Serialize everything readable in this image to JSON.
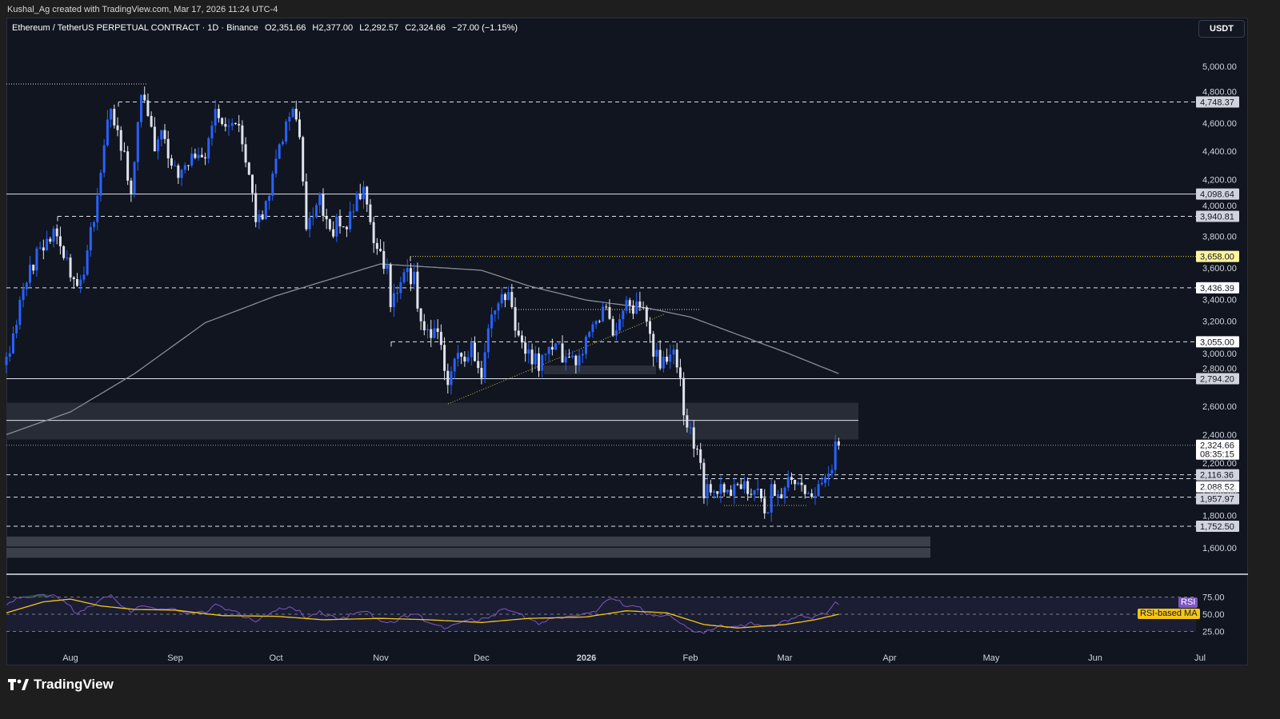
{
  "attribution": "Kushal_Ag created with TradingView.com, Mar 17, 2026 11:24 UTC-4",
  "legend": {
    "symbol": "Ethereum / TetherUS PERPETUAL CONTRACT · 1D · Binance",
    "open": "O2,351.66",
    "high": "H2,377.00",
    "low": "L2,292.57",
    "close": "C2,324.66",
    "change": "−27.00 (−1.15%)"
  },
  "currency_button": "USDT",
  "footer": {
    "brand": "TradingView"
  },
  "colors": {
    "up_candle": "#2962ff",
    "down_candle": "#e0e3eb",
    "ma_line": "#8a8d94",
    "rsi_line": "#7e57c2",
    "rsi_ma_line": "#f5c518",
    "level_yellow": "#fff59d",
    "background": "#10151f"
  },
  "chart_data": {
    "type": "candlestick",
    "title": "Ethereum / TetherUS PERPETUAL CONTRACT · 1D · Binance",
    "ylabel": "USDT",
    "ylim": [
      1500,
      5300
    ],
    "y_ticks": [
      "5,000.00",
      "4,800.00",
      "4,600.00",
      "4,400.00",
      "4,200.00",
      "4,000.00",
      "3,800.00",
      "3,600.00",
      "3,400.00",
      "3,200.00",
      "3,000.00",
      "2,800.00",
      "2,600.00",
      "2,400.00",
      "2,200.00",
      "2,000.00",
      "1,800.00",
      "1,600.00"
    ],
    "x_ticks": [
      "Aug",
      "Sep",
      "Oct",
      "Nov",
      "Dec",
      "2026",
      "Feb",
      "Mar",
      "Apr",
      "May",
      "Jun",
      "Jul"
    ],
    "last_candle": {
      "date": "2026-03-17",
      "open": 2351.66,
      "high": 2377.0,
      "low": 2292.57,
      "close": 2324.66
    },
    "close_path": [
      [
        "2025-07-13",
        2950
      ],
      [
        "2025-07-17",
        3350
      ],
      [
        "2025-07-20",
        3600
      ],
      [
        "2025-07-24",
        3700
      ],
      [
        "2025-07-28",
        3800
      ],
      [
        "2025-07-31",
        3650
      ],
      [
        "2025-08-03",
        3450
      ],
      [
        "2025-08-06",
        3700
      ],
      [
        "2025-08-08",
        3900
      ],
      [
        "2025-08-10",
        4250
      ],
      [
        "2025-08-13",
        4700
      ],
      [
        "2025-08-15",
        4550
      ],
      [
        "2025-08-17",
        4400
      ],
      [
        "2025-08-19",
        4100
      ],
      [
        "2025-08-22",
        4800
      ],
      [
        "2025-08-24",
        4650
      ],
      [
        "2025-08-26",
        4400
      ],
      [
        "2025-08-28",
        4550
      ],
      [
        "2025-09-01",
        4300
      ],
      [
        "2025-09-05",
        4300
      ],
      [
        "2025-09-10",
        4350
      ],
      [
        "2025-09-13",
        4700
      ],
      [
        "2025-09-18",
        4600
      ],
      [
        "2025-09-21",
        4450
      ],
      [
        "2025-09-25",
        3900
      ],
      [
        "2025-09-28",
        4050
      ],
      [
        "2025-10-02",
        4450
      ],
      [
        "2025-10-06",
        4700
      ],
      [
        "2025-10-08",
        4500
      ],
      [
        "2025-10-10",
        3850
      ],
      [
        "2025-10-14",
        4100
      ],
      [
        "2025-10-17",
        3850
      ],
      [
        "2025-10-22",
        3850
      ],
      [
        "2025-10-27",
        4150
      ],
      [
        "2025-10-29",
        3900
      ],
      [
        "2025-11-03",
        3600
      ],
      [
        "2025-11-04",
        3300
      ],
      [
        "2025-11-06",
        3400
      ],
      [
        "2025-11-11",
        3550
      ],
      [
        "2025-11-13",
        3200
      ],
      [
        "2025-11-17",
        3150
      ],
      [
        "2025-11-20",
        2850
      ],
      [
        "2025-11-21",
        2750
      ],
      [
        "2025-11-25",
        2950
      ],
      [
        "2025-11-28",
        3050
      ],
      [
        "2025-12-01",
        2800
      ],
      [
        "2025-12-03",
        3150
      ],
      [
        "2025-12-08",
        3350
      ],
      [
        "2025-12-10",
        3300
      ],
      [
        "2025-12-12",
        3100
      ],
      [
        "2025-12-15",
        3000
      ],
      [
        "2025-12-18",
        2850
      ],
      [
        "2025-12-22",
        3000
      ],
      [
        "2025-12-26",
        2950
      ],
      [
        "2025-12-31",
        2970
      ],
      [
        "2026-01-05",
        3200
      ],
      [
        "2026-01-07",
        3300
      ],
      [
        "2026-01-09",
        3100
      ],
      [
        "2026-01-13",
        3350
      ],
      [
        "2026-01-17",
        3300
      ],
      [
        "2026-01-19",
        3200
      ],
      [
        "2026-01-21",
        2950
      ],
      [
        "2026-01-24",
        2950
      ],
      [
        "2026-01-27",
        3000
      ],
      [
        "2026-01-29",
        2800
      ],
      [
        "2026-01-31",
        2450
      ],
      [
        "2026-02-02",
        2300
      ],
      [
        "2026-02-04",
        2200
      ],
      [
        "2026-02-05",
        1950
      ],
      [
        "2026-02-06",
        2050
      ],
      [
        "2026-02-10",
        2050
      ],
      [
        "2026-02-14",
        2050
      ],
      [
        "2026-02-18",
        1980
      ],
      [
        "2026-02-22",
        1950
      ],
      [
        "2026-02-24",
        1850
      ],
      [
        "2026-02-25",
        2050
      ],
      [
        "2026-02-28",
        1950
      ],
      [
        "2026-03-02",
        2100
      ],
      [
        "2026-03-04",
        2050
      ],
      [
        "2026-03-07",
        1980
      ],
      [
        "2026-03-09",
        1960
      ],
      [
        "2026-03-11",
        2050
      ],
      [
        "2026-03-13",
        2100
      ],
      [
        "2026-03-15",
        2150
      ],
      [
        "2026-03-16",
        2351.66
      ],
      [
        "2026-03-17",
        2324.66
      ]
    ],
    "moving_average_path": [
      [
        "2025-07-13",
        2400
      ],
      [
        "2025-08-01",
        2560
      ],
      [
        "2025-08-20",
        2830
      ],
      [
        "2025-09-10",
        3190
      ],
      [
        "2025-10-01",
        3380
      ],
      [
        "2025-11-01",
        3605
      ],
      [
        "2025-12-01",
        3560
      ],
      [
        "2025-12-15",
        3450
      ],
      [
        "2026-01-01",
        3350
      ],
      [
        "2026-01-20",
        3290
      ],
      [
        "2026-02-01",
        3230
      ],
      [
        "2026-03-01",
        2983
      ],
      [
        "2026-03-17",
        2830
      ]
    ],
    "levels": [
      {
        "price": 4748.37,
        "label": "4,748.37",
        "style": "dashed"
      },
      {
        "price": 4098.64,
        "label": "4,098.64",
        "style": "solid"
      },
      {
        "price": 3940.81,
        "label": "3,940.81",
        "style": "dashed"
      },
      {
        "price": 3658.0,
        "label": "3,658.00",
        "style": "dotted-yellow"
      },
      {
        "price": 3436.39,
        "label": "3,436.39",
        "style": "dashed"
      },
      {
        "price": 3055.0,
        "label": "3,055.00",
        "style": "dashed"
      },
      {
        "price": 2794.2,
        "label": "2,794.20",
        "style": "solid"
      },
      {
        "price": 2324.66,
        "label": "2,324.66",
        "style": "current",
        "countdown": "08:35:15"
      },
      {
        "price": 2116.36,
        "label": "2,116.36",
        "style": "dashed"
      },
      {
        "price": 2088.52,
        "label": "2,088.52",
        "style": "dashed"
      },
      {
        "price": 1957.97,
        "label": "1,957.97",
        "style": "dashed"
      },
      {
        "price": 1752.5,
        "label": "1,752.50",
        "style": "dashed"
      }
    ],
    "zones": [
      {
        "from": 2365,
        "to": 2625,
        "mid": 2500
      },
      {
        "from": 1530,
        "to": 1680
      }
    ],
    "rsi": {
      "label": "RSI",
      "ma_label": "RSI-based MA",
      "y_ticks": [
        "75.00",
        "50.00",
        "25.00"
      ],
      "bands": [
        70,
        50,
        30
      ],
      "path": [
        [
          "2025-07-13",
          62
        ],
        [
          "2025-07-18",
          76
        ],
        [
          "2025-07-24",
          80
        ],
        [
          "2025-07-28",
          74
        ],
        [
          "2025-08-03",
          52
        ],
        [
          "2025-08-06",
          62
        ],
        [
          "2025-08-10",
          70
        ],
        [
          "2025-08-13",
          75
        ],
        [
          "2025-08-16",
          62
        ],
        [
          "2025-08-19",
          56
        ],
        [
          "2025-08-22",
          66
        ],
        [
          "2025-08-26",
          55
        ],
        [
          "2025-09-01",
          58
        ],
        [
          "2025-09-05",
          54
        ],
        [
          "2025-09-10",
          50
        ],
        [
          "2025-09-13",
          62
        ],
        [
          "2025-09-18",
          58
        ],
        [
          "2025-09-25",
          38
        ],
        [
          "2025-09-28",
          46
        ],
        [
          "2025-10-02",
          60
        ],
        [
          "2025-10-06",
          62
        ],
        [
          "2025-10-10",
          42
        ],
        [
          "2025-10-14",
          52
        ],
        [
          "2025-10-20",
          46
        ],
        [
          "2025-10-27",
          52
        ],
        [
          "2025-11-03",
          40
        ],
        [
          "2025-11-06",
          42
        ],
        [
          "2025-11-11",
          48
        ],
        [
          "2025-11-17",
          38
        ],
        [
          "2025-11-21",
          30
        ],
        [
          "2025-11-28",
          40
        ],
        [
          "2025-12-03",
          47
        ],
        [
          "2025-12-08",
          55
        ],
        [
          "2025-12-15",
          44
        ],
        [
          "2025-12-18",
          38
        ],
        [
          "2025-12-26",
          44
        ],
        [
          "2026-01-05",
          58
        ],
        [
          "2026-01-08",
          72
        ],
        [
          "2026-01-13",
          65
        ],
        [
          "2026-01-17",
          62
        ],
        [
          "2026-01-21",
          44
        ],
        [
          "2026-01-27",
          46
        ],
        [
          "2026-02-01",
          30
        ],
        [
          "2026-02-05",
          22
        ],
        [
          "2026-02-10",
          32
        ],
        [
          "2026-02-18",
          36
        ],
        [
          "2026-02-24",
          30
        ],
        [
          "2026-03-01",
          42
        ],
        [
          "2026-03-05",
          46
        ],
        [
          "2026-03-09",
          42
        ],
        [
          "2026-03-13",
          52
        ],
        [
          "2026-03-16",
          70
        ],
        [
          "2026-03-17",
          68
        ]
      ],
      "ma_path": [
        [
          "2025-07-13",
          52
        ],
        [
          "2025-07-24",
          68
        ],
        [
          "2025-08-01",
          72
        ],
        [
          "2025-08-10",
          62
        ],
        [
          "2025-08-20",
          57
        ],
        [
          "2025-09-01",
          56
        ],
        [
          "2025-09-15",
          48
        ],
        [
          "2025-10-01",
          47
        ],
        [
          "2025-10-15",
          42
        ],
        [
          "2025-11-01",
          44
        ],
        [
          "2025-11-15",
          42
        ],
        [
          "2025-12-01",
          38
        ],
        [
          "2025-12-15",
          44
        ],
        [
          "2026-01-01",
          46
        ],
        [
          "2026-01-13",
          55
        ],
        [
          "2026-01-25",
          52
        ],
        [
          "2026-02-05",
          35
        ],
        [
          "2026-02-15",
          30
        ],
        [
          "2026-03-01",
          35
        ],
        [
          "2026-03-10",
          42
        ],
        [
          "2026-03-17",
          50
        ]
      ]
    }
  }
}
